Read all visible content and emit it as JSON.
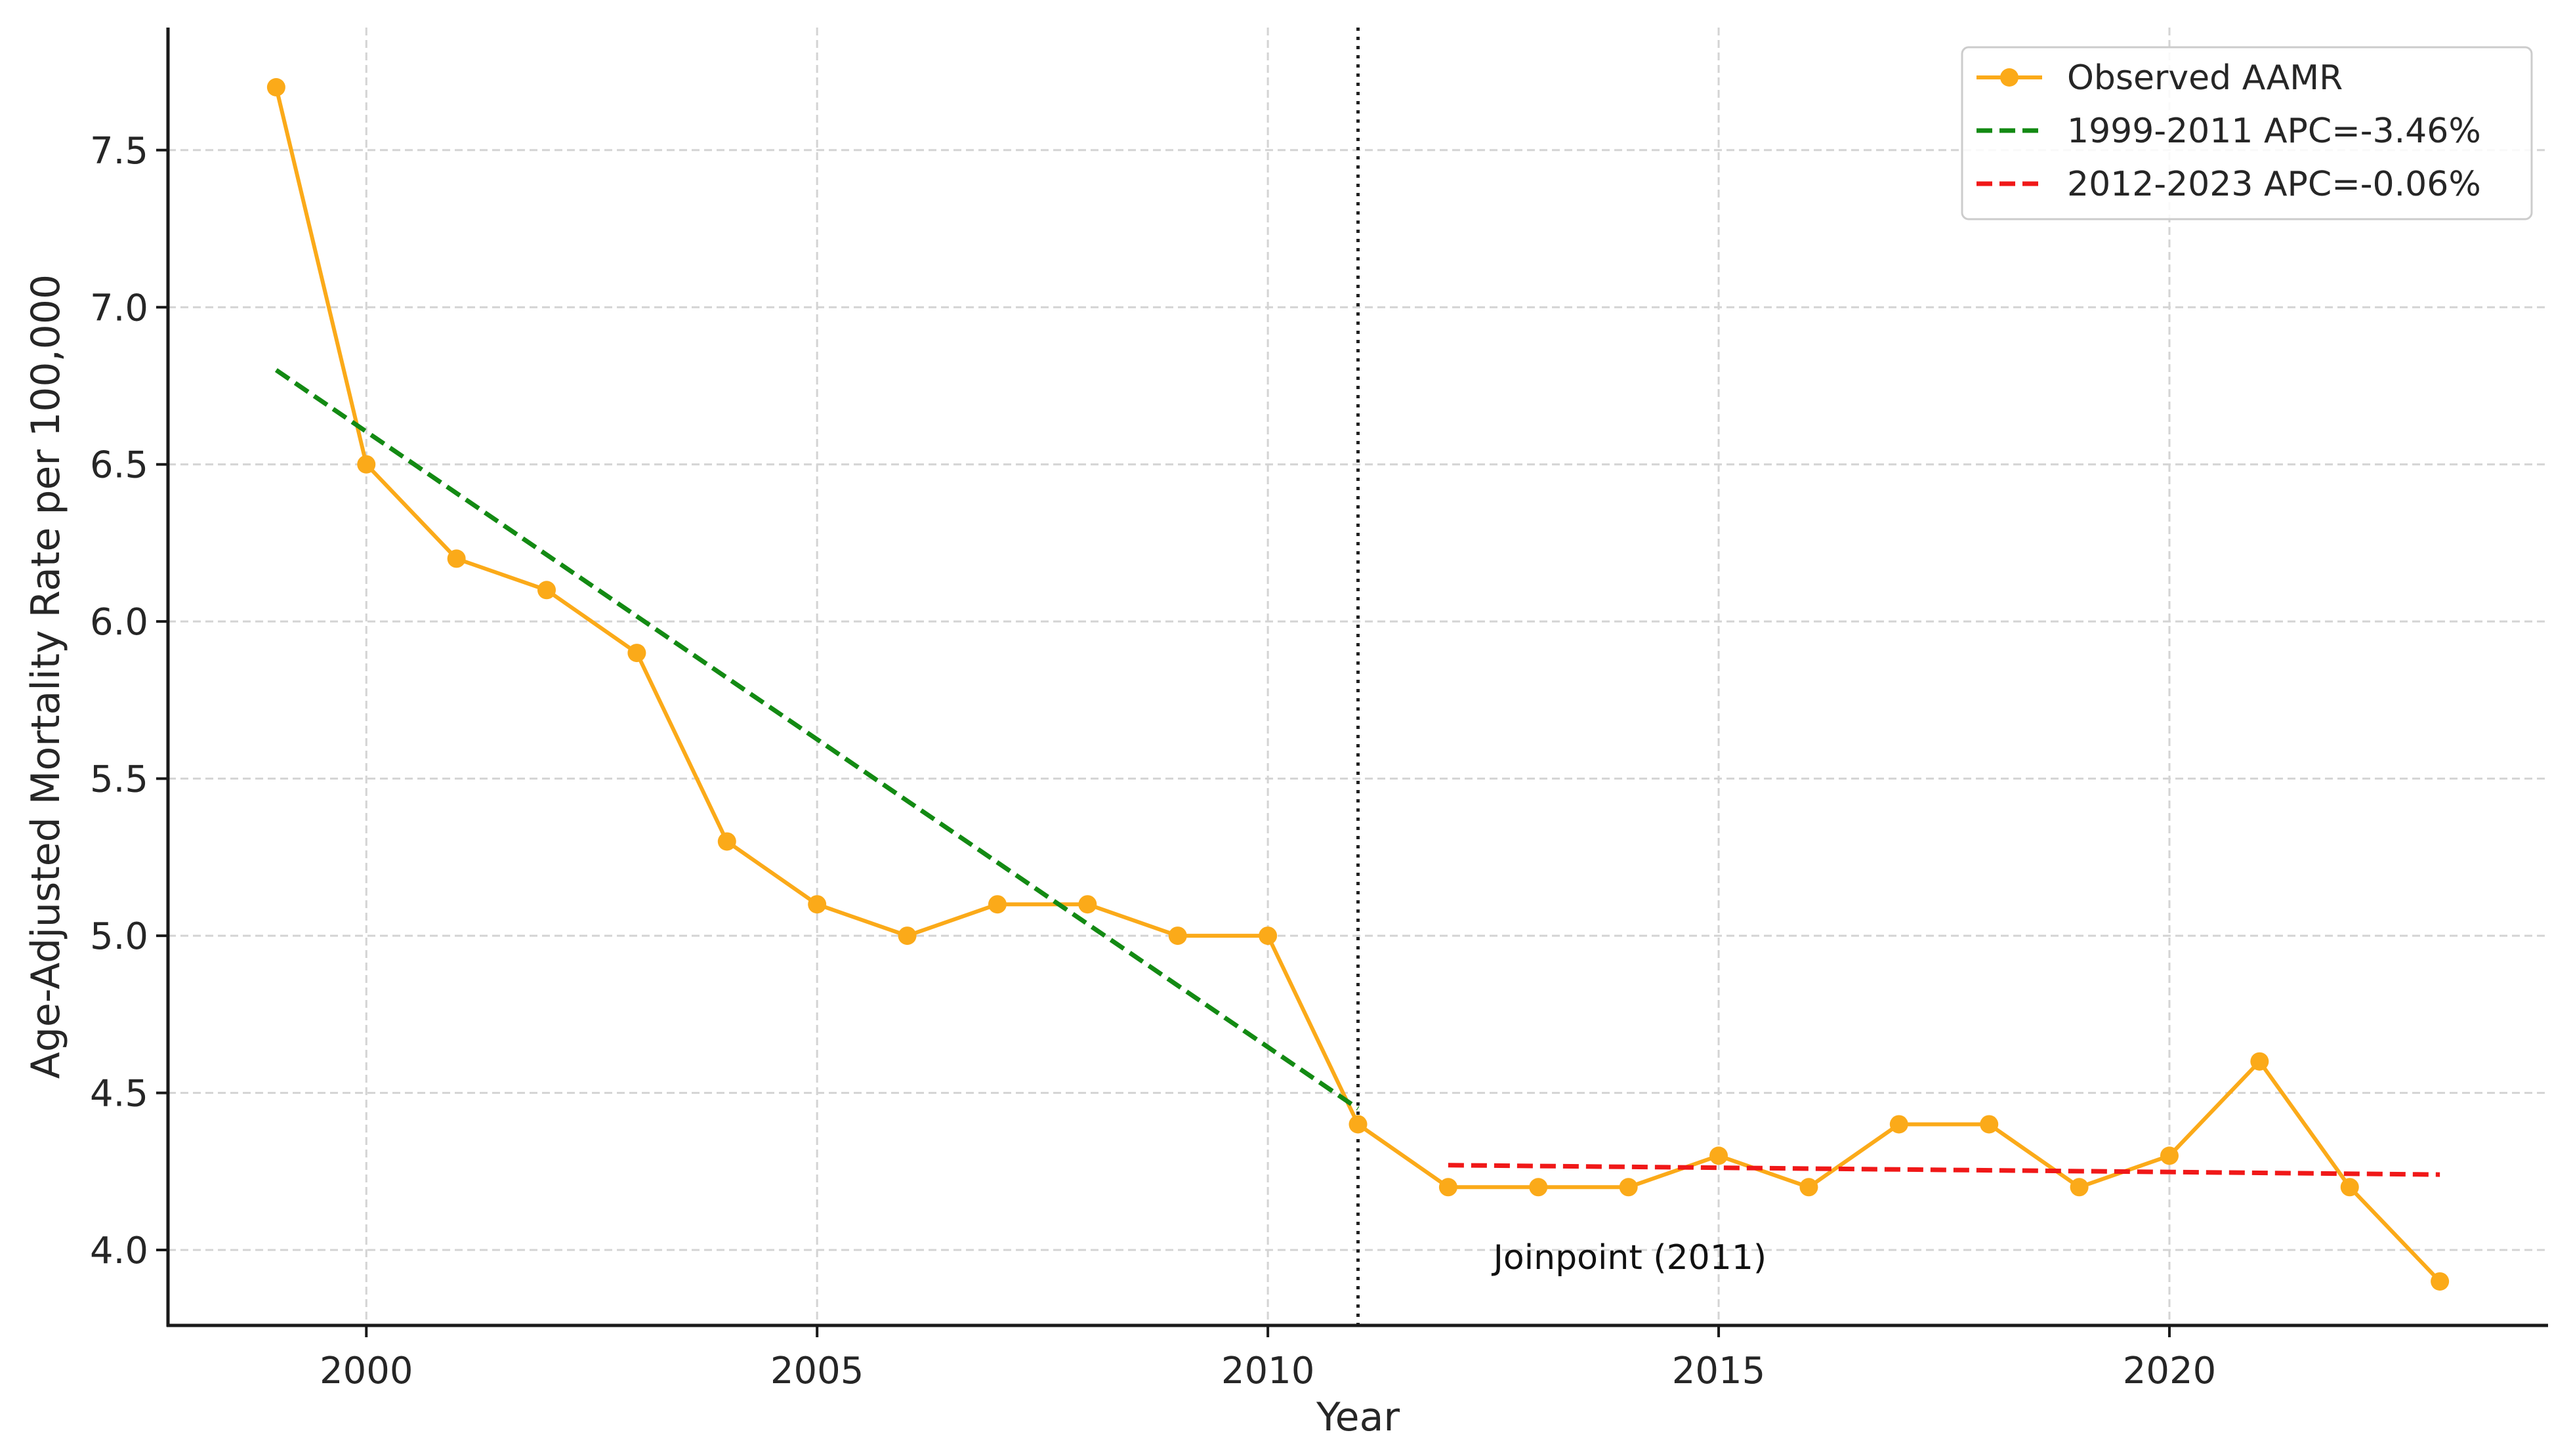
{
  "chart_data": {
    "type": "line",
    "title": "",
    "xlabel": "Year",
    "ylabel": "Age-Adjusted Mortality Rate per 100,000",
    "xlim": [
      1997.8,
      2024.2
    ],
    "ylim": [
      3.76,
      7.89
    ],
    "x_ticks": [
      2000,
      2005,
      2010,
      2015,
      2020
    ],
    "x_tick_labels": [
      "2000",
      "2005",
      "2010",
      "2015",
      "2020"
    ],
    "y_ticks": [
      4.0,
      4.5,
      5.0,
      5.5,
      6.0,
      6.5,
      7.0,
      7.5
    ],
    "y_tick_labels": [
      "4.0",
      "4.5",
      "5.0",
      "5.5",
      "6.0",
      "6.5",
      "7.0",
      "7.5"
    ],
    "grid": true,
    "legend_position": "top-right",
    "series": [
      {
        "name": "Observed AAMR",
        "color": "#FBAA19",
        "style": "solid-with-markers",
        "x": [
          1999,
          2000,
          2001,
          2002,
          2003,
          2004,
          2005,
          2006,
          2007,
          2008,
          2009,
          2010,
          2011,
          2012,
          2013,
          2014,
          2015,
          2016,
          2017,
          2018,
          2019,
          2020,
          2021,
          2022,
          2023
        ],
        "y": [
          7.7,
          6.5,
          6.2,
          6.1,
          5.9,
          5.3,
          5.1,
          5.0,
          5.1,
          5.1,
          5.0,
          5.0,
          4.4,
          4.2,
          4.2,
          4.2,
          4.3,
          4.2,
          4.4,
          4.4,
          4.2,
          4.3,
          4.6,
          4.2,
          3.9
        ]
      },
      {
        "name": "1999-2011 APC=-3.46%",
        "color": "#138A13",
        "style": "dashed",
        "x": [
          1999,
          2011
        ],
        "y": [
          6.8,
          4.45
        ]
      },
      {
        "name": "2012-2023 APC=-0.06%",
        "color": "#F01818",
        "style": "dashed",
        "x": [
          2012,
          2023
        ],
        "y": [
          4.27,
          4.24
        ]
      }
    ],
    "annotations": [
      {
        "type": "vline",
        "x": 2011,
        "style": "dotted",
        "color": "#222222"
      },
      {
        "type": "text",
        "x": 2012.5,
        "y": 3.94,
        "text": "Joinpoint (2011)"
      }
    ]
  }
}
